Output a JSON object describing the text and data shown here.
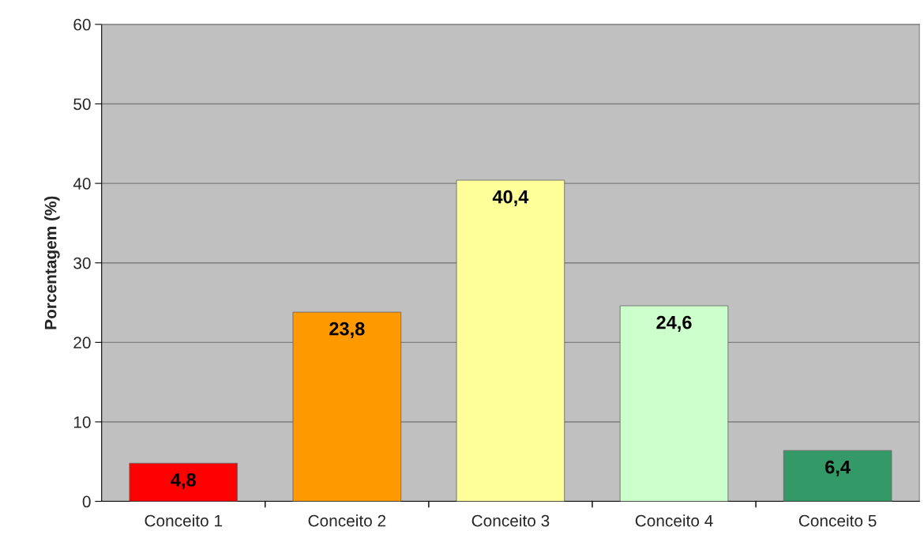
{
  "chart_data": {
    "type": "bar",
    "ylabel": "Porcentagem (%)",
    "categories": [
      "Conceito 1",
      "Conceito 2",
      "Conceito 3",
      "Conceito 4",
      "Conceito 5"
    ],
    "values": [
      4.8,
      23.8,
      40.4,
      24.6,
      6.4
    ],
    "colors": [
      "#ff0000",
      "#ff9900",
      "#ffff99",
      "#ccffcc",
      "#339966"
    ],
    "value_labels": [
      "4,8",
      "23,8",
      "40,4",
      "24,6",
      "6,4"
    ],
    "ylim": [
      0,
      60
    ],
    "yticks": [
      0,
      10,
      20,
      30,
      40,
      50,
      60
    ],
    "grid": "y"
  }
}
